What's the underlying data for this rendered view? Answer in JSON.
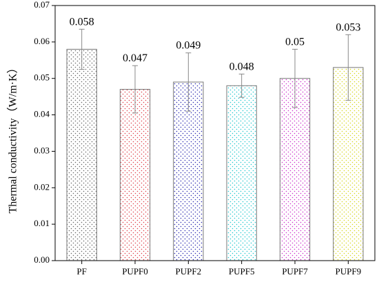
{
  "chart_data": {
    "type": "bar",
    "title": "",
    "xlabel": "",
    "ylabel": "Thermal conductivity（W/m·K）",
    "categories": [
      "PF",
      "PUPF0",
      "PUPF2",
      "PUPF5",
      "PUPF7",
      "PUPF9"
    ],
    "values": [
      0.058,
      0.047,
      0.049,
      0.048,
      0.05,
      0.053
    ],
    "data_labels": [
      "0.058",
      "0.047",
      "0.049",
      "0.048",
      "0.05",
      "0.053"
    ],
    "error": [
      0.0055,
      0.0065,
      0.008,
      0.0032,
      0.008,
      0.009
    ],
    "ylim": [
      0,
      0.07
    ],
    "yticks": [
      0,
      0.01,
      0.02,
      0.03,
      0.04,
      0.05,
      0.06,
      0.07
    ],
    "ytick_labels": [
      "0.00",
      "0.01",
      "0.02",
      "0.03",
      "0.04",
      "0.05",
      "0.06",
      "0.07"
    ],
    "dot_colors": [
      "#666666",
      "#e0404a",
      "#2a2ab0",
      "#22c8d0",
      "#cc33cc",
      "#d8d820"
    ],
    "grid": false,
    "legend": "none"
  }
}
